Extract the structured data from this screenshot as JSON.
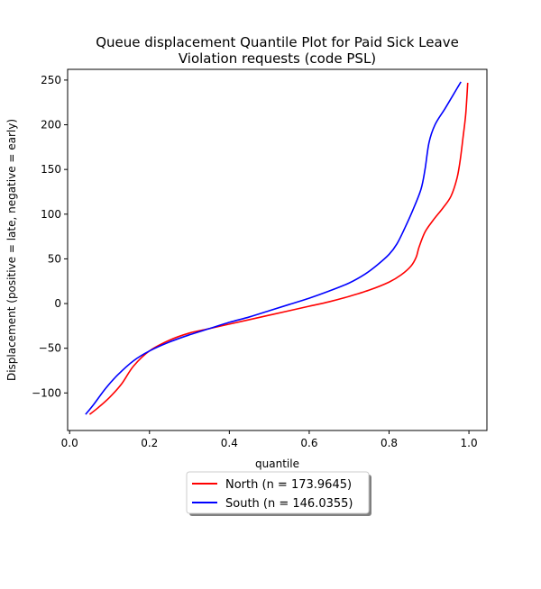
{
  "chart_data": {
    "type": "line",
    "title": [
      "Queue displacement Quantile Plot for Paid Sick Leave",
      "Violation  requests (code PSL)"
    ],
    "xlabel": "quantile",
    "ylabel": "Displacement (positive = late, negative = early)",
    "xlim": [
      -0.005,
      1.045
    ],
    "ylim": [
      -142,
      262
    ],
    "xticks": [
      0.0,
      0.2,
      0.4,
      0.6,
      0.8,
      1.0
    ],
    "xtick_labels": [
      "0.0",
      "0.2",
      "0.4",
      "0.6",
      "0.8",
      "1.0"
    ],
    "yticks": [
      -100,
      -50,
      0,
      50,
      100,
      150,
      200,
      250
    ],
    "ytick_labels": [
      "−100",
      "−50",
      "0",
      "50",
      "100",
      "150",
      "200",
      "250"
    ],
    "grid": false,
    "legend_placement": "below-center",
    "series": [
      {
        "name": "North (n = 173.9645)",
        "color": "#ff0000",
        "points": [
          [
            0.05,
            -124
          ],
          [
            0.07,
            -117
          ],
          [
            0.1,
            -105
          ],
          [
            0.13,
            -90
          ],
          [
            0.16,
            -70
          ],
          [
            0.2,
            -53
          ],
          [
            0.25,
            -41
          ],
          [
            0.3,
            -33
          ],
          [
            0.35,
            -28
          ],
          [
            0.4,
            -23
          ],
          [
            0.45,
            -18
          ],
          [
            0.5,
            -13
          ],
          [
            0.55,
            -8
          ],
          [
            0.6,
            -3
          ],
          [
            0.65,
            2
          ],
          [
            0.7,
            8
          ],
          [
            0.75,
            15
          ],
          [
            0.8,
            24
          ],
          [
            0.83,
            32
          ],
          [
            0.855,
            42
          ],
          [
            0.868,
            52
          ],
          [
            0.875,
            63
          ],
          [
            0.89,
            80
          ],
          [
            0.91,
            93
          ],
          [
            0.935,
            107
          ],
          [
            0.955,
            120
          ],
          [
            0.97,
            140
          ],
          [
            0.978,
            160
          ],
          [
            0.985,
            185
          ],
          [
            0.992,
            212
          ],
          [
            0.997,
            247
          ]
        ]
      },
      {
        "name": "South (n = 146.0355)",
        "color": "#0000ff",
        "points": [
          [
            0.04,
            -124
          ],
          [
            0.06,
            -113
          ],
          [
            0.09,
            -95
          ],
          [
            0.12,
            -80
          ],
          [
            0.16,
            -64
          ],
          [
            0.2,
            -53
          ],
          [
            0.25,
            -43
          ],
          [
            0.3,
            -35
          ],
          [
            0.35,
            -28
          ],
          [
            0.4,
            -21
          ],
          [
            0.45,
            -15
          ],
          [
            0.5,
            -8
          ],
          [
            0.55,
            -1
          ],
          [
            0.6,
            6
          ],
          [
            0.65,
            14
          ],
          [
            0.7,
            23
          ],
          [
            0.74,
            33
          ],
          [
            0.77,
            43
          ],
          [
            0.8,
            55
          ],
          [
            0.82,
            67
          ],
          [
            0.84,
            85
          ],
          [
            0.86,
            105
          ],
          [
            0.88,
            128
          ],
          [
            0.89,
            150
          ],
          [
            0.9,
            180
          ],
          [
            0.915,
            200
          ],
          [
            0.94,
            218
          ],
          [
            0.96,
            233
          ],
          [
            0.98,
            248
          ]
        ]
      }
    ]
  }
}
